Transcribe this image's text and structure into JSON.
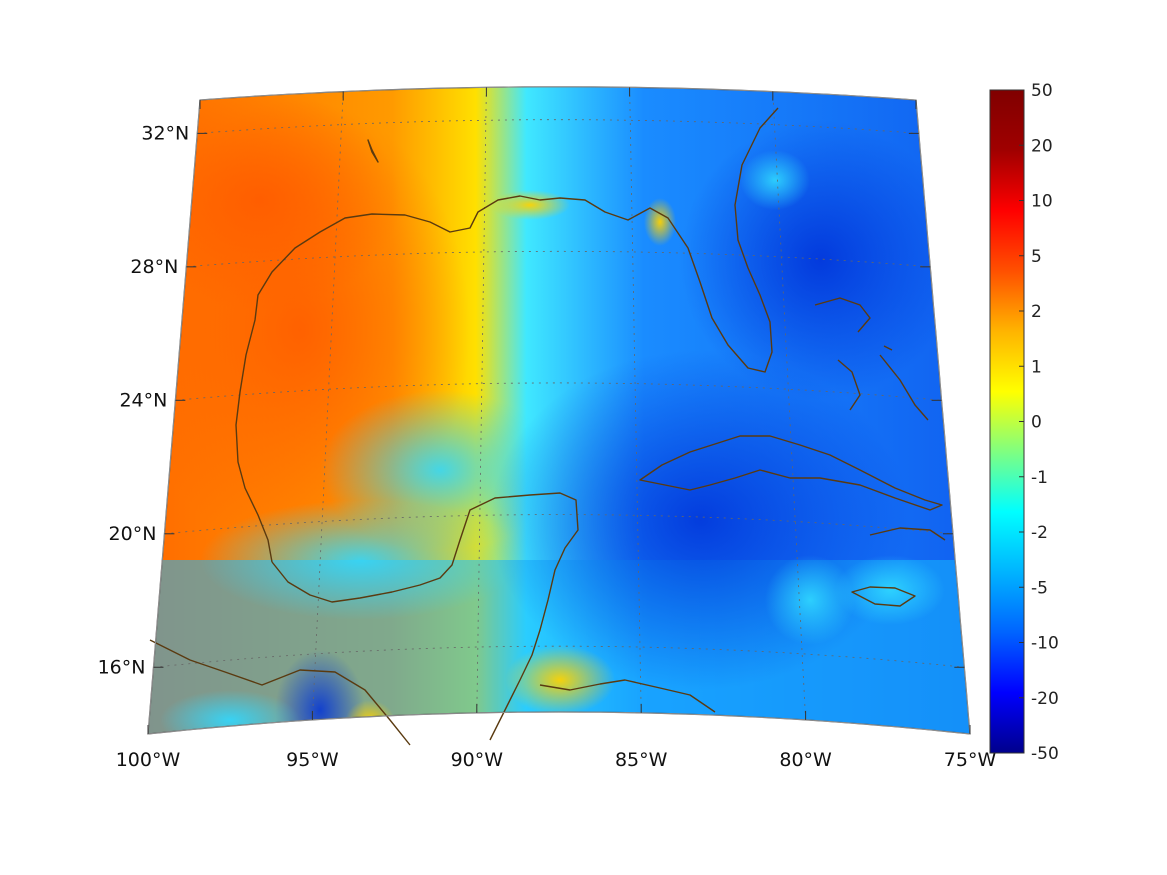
{
  "map": {
    "extent": {
      "lon_min": -100,
      "lon_max": -75,
      "lat_min": 14,
      "lat_max": 33
    },
    "lon_ticks": [
      {
        "value": -100,
        "label": "100°W"
      },
      {
        "value": -95,
        "label": "95°W"
      },
      {
        "value": -90,
        "label": "90°W"
      },
      {
        "value": -85,
        "label": "85°W"
      },
      {
        "value": -80,
        "label": "80°W"
      },
      {
        "value": -75,
        "label": "75°W"
      }
    ],
    "lat_ticks": [
      {
        "value": 16,
        "label": "16°N"
      },
      {
        "value": 20,
        "label": "20°N"
      },
      {
        "value": 24,
        "label": "24°N"
      },
      {
        "value": 28,
        "label": "28°N"
      },
      {
        "value": 32,
        "label": "32°N"
      }
    ],
    "gridlines": true,
    "coastline_color": "#5a3a10",
    "field_regions": [
      {
        "name": "western-gulf-warm",
        "color": "#ff6a00"
      },
      {
        "name": "central-transition",
        "color": "#ffc800"
      },
      {
        "name": "eastern-gulf-cool",
        "color": "#00c8ff"
      },
      {
        "name": "caribbean-cold",
        "color": "#0a55e6"
      }
    ]
  },
  "colorbar": {
    "labels": [
      "50",
      "20",
      "10",
      "5",
      "2",
      "1",
      "0",
      "-1",
      "-2",
      "-5",
      "-10",
      "-20",
      "-50"
    ],
    "colors": [
      "#00008c",
      "#0000ff",
      "#0064ff",
      "#00b4ff",
      "#00ffff",
      "#80ff80",
      "#ffff00",
      "#ffb400",
      "#ff5000",
      "#ff0000",
      "#a00000",
      "#800000"
    ]
  }
}
